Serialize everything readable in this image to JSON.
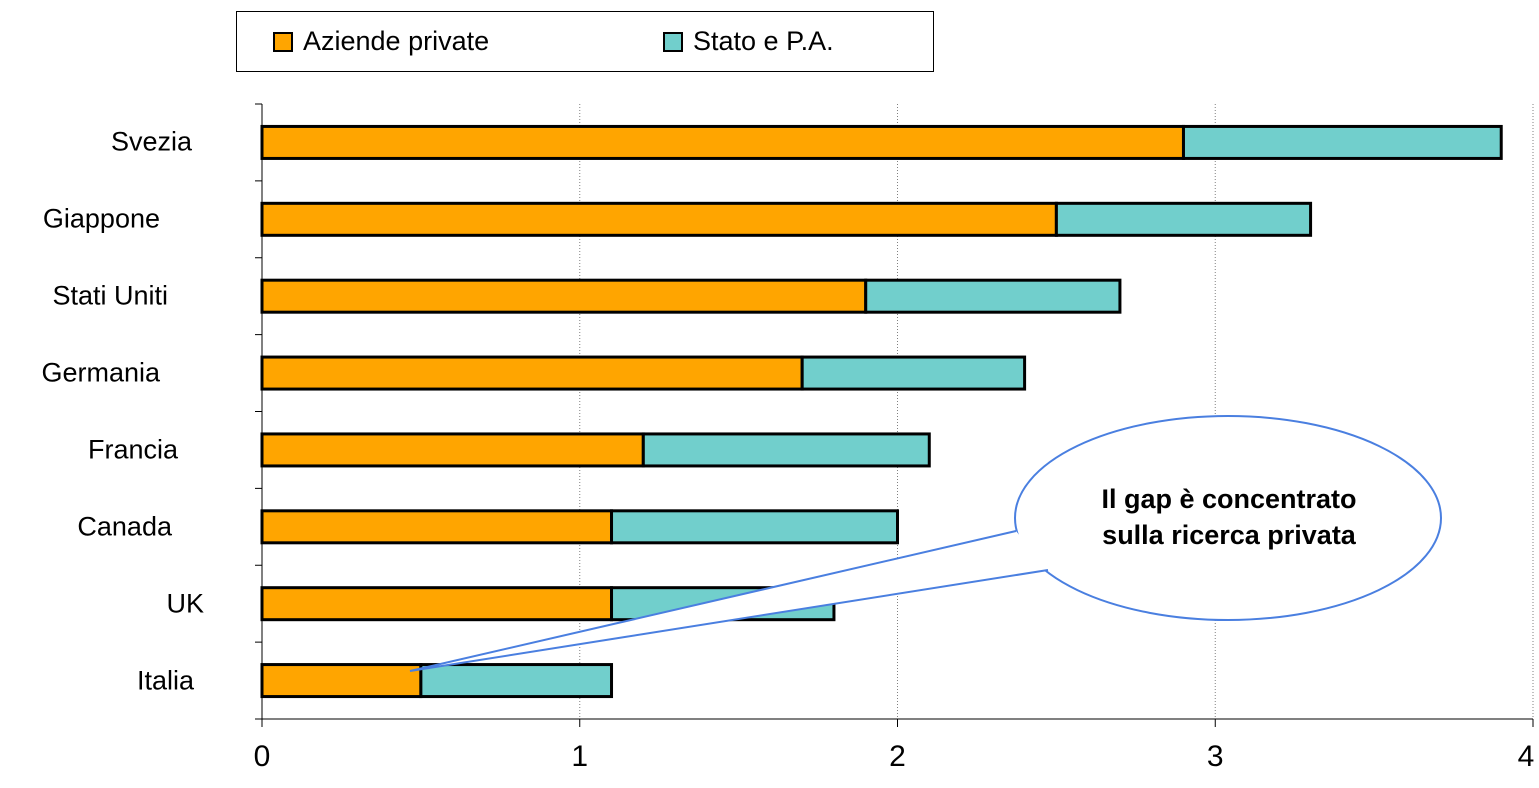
{
  "chart_data": {
    "type": "bar",
    "orientation": "horizontal",
    "stacked": true,
    "categories": [
      "Svezia",
      "Giappone",
      "Stati Uniti",
      "Germania",
      "Francia",
      "Canada",
      "UK",
      "Italia"
    ],
    "series": [
      {
        "name": "Aziende private",
        "color": "#FFA500",
        "values": [
          2.9,
          2.5,
          1.9,
          1.7,
          1.2,
          1.1,
          1.1,
          0.5
        ]
      },
      {
        "name": "Stato e P.A.",
        "color": "#71CFCC",
        "values": [
          1.0,
          0.8,
          0.8,
          0.7,
          0.9,
          0.9,
          0.7,
          0.6
        ]
      }
    ],
    "xlim": [
      0,
      4
    ],
    "xticks": [
      "0",
      "1",
      "2",
      "3",
      "4"
    ],
    "grid": "vertical dotted",
    "legend_position": "top",
    "title": "",
    "xlabel": "",
    "ylabel": "",
    "annotation": {
      "line1": "Il gap è concentrato",
      "line2": "sulla ricerca privata",
      "points_to": "Italia",
      "border_color": "#4A7FE0"
    }
  }
}
